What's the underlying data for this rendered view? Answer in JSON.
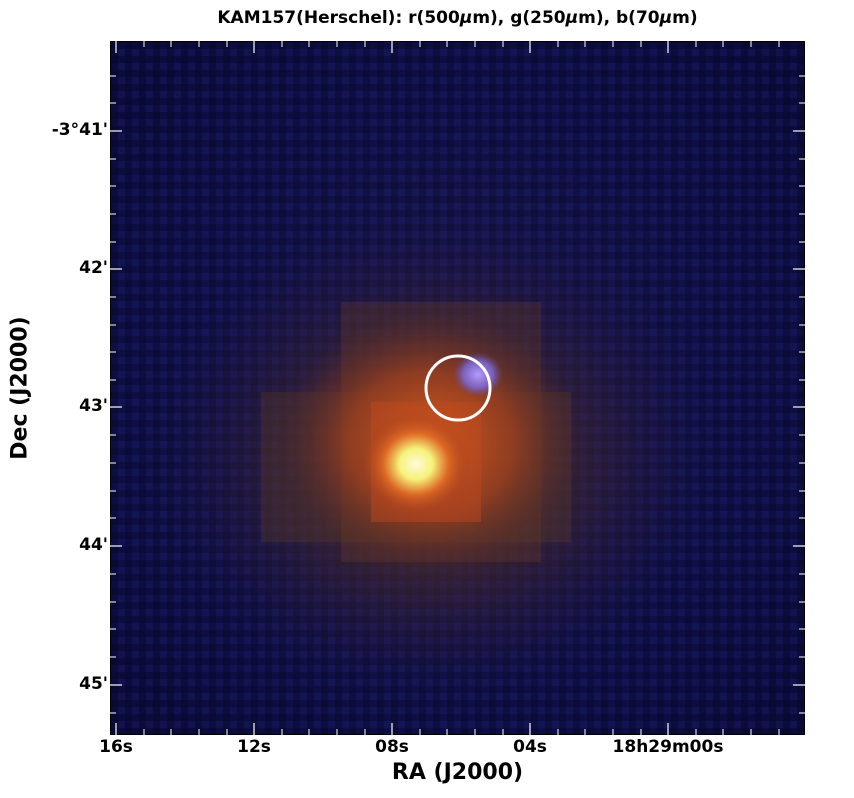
{
  "figure": {
    "title_prefix": "KAM157(Herschel): r(500",
    "title_mid1": "m), g(250",
    "title_mid2": "m), b(70",
    "title_suffix": "m)",
    "mu": "μ",
    "xlabel": "RA (J2000)",
    "ylabel": "Dec (J2000)",
    "y_ticks": [
      "-3°41'",
      "42'",
      "43'",
      "44'",
      "45'"
    ],
    "x_ticks": [
      "16s",
      "12s",
      "08s",
      "04s",
      "18h29m00s"
    ],
    "colors": {
      "background_blue": "#0c0d45",
      "bright_source": "#fff7b0",
      "circle": "#ffffff",
      "compact_blue_source": "#a58cff"
    }
  },
  "icons": {
    "marker": "circle-marker-icon"
  }
}
